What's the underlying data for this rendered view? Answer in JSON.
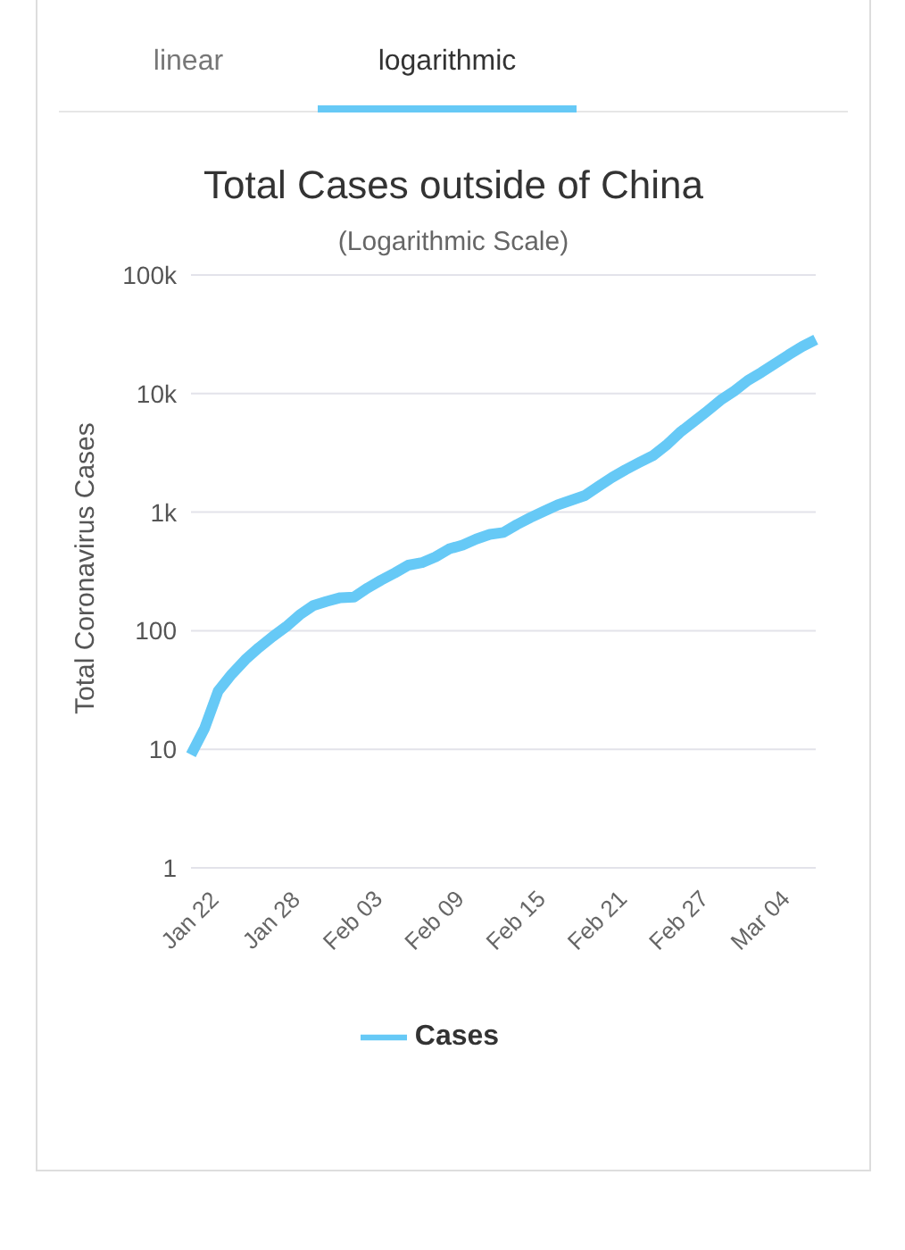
{
  "chart_data": {
    "type": "line",
    "title": "Total Cases outside of China",
    "subtitle": "(Logarithmic Scale)",
    "ylabel": "Total Coronavirus Cases",
    "annotations": [
      "linear",
      "logarithmic"
    ],
    "categories": [
      "Jan 22",
      null,
      null,
      null,
      null,
      null,
      "Jan 28",
      null,
      null,
      null,
      null,
      null,
      "Feb 03",
      null,
      null,
      null,
      null,
      null,
      "Feb 09",
      null,
      null,
      null,
      null,
      null,
      "Feb 15",
      null,
      null,
      null,
      null,
      null,
      "Feb 21",
      null,
      null,
      null,
      null,
      null,
      "Feb 27",
      null,
      null,
      null,
      null,
      null,
      "Mar 04",
      null,
      null,
      null,
      null
    ],
    "series": [
      {
        "name": "Cases",
        "color": "#66c9f6",
        "values": [
          9,
          15,
          31,
          43,
          57,
          72,
          89,
          108,
          136,
          163,
          177,
          190,
          192,
          229,
          267,
          307,
          357,
          375,
          419,
          489,
          528,
          593,
          649,
          674,
          786,
          901,
          1020,
          1150,
          1260,
          1380,
          1650,
          1960,
          2280,
          2620,
          2990,
          3670,
          4700,
          5760,
          7090,
          8810,
          10500,
          12900,
          15100,
          17900,
          21200,
          24900,
          28500
        ]
      }
    ],
    "log": "y",
    "ylim": [
      1,
      100000
    ],
    "yticks": [
      1,
      10,
      100,
      {
        "value": 1000,
        "label": "1k"
      },
      {
        "value": 10000,
        "label": "10k"
      },
      {
        "value": 100000,
        "label": "100k"
      }
    ],
    "grid": "y",
    "legend": "bottom",
    "marker": "none",
    "line_style": "solid"
  }
}
